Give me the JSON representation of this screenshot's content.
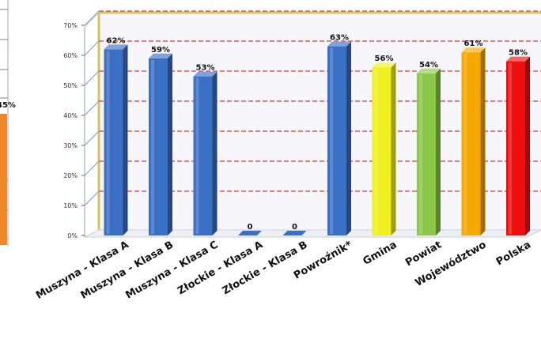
{
  "chart_data": {
    "type": "bar",
    "categories": [
      "Muszyna - Klasa A",
      "Muszyna - Klasa B",
      "Muszyna - Klasa C",
      "Złockie - Klasa A",
      "Złockie - Klasa B",
      "Powroźnik*",
      "Gmina",
      "Powiat",
      "Województwo",
      "Polska"
    ],
    "values": [
      62,
      59,
      53,
      0,
      0,
      63,
      56,
      54,
      61,
      58
    ],
    "value_labels": [
      "62%",
      "59%",
      "53%",
      "0",
      "0",
      "63%",
      "56%",
      "54%",
      "61%",
      "58%"
    ],
    "colors": [
      "#3b6fc4",
      "#3b6fc4",
      "#3b6fc4",
      "#3b6fc4",
      "#3b6fc4",
      "#3b6fc4",
      "#f0f020",
      "#8cc84a",
      "#f5a800",
      "#ee1010"
    ],
    "yticks": [
      "0%",
      "10%",
      "20%",
      "30%",
      "40%",
      "50%",
      "60%",
      "70%"
    ],
    "ylim": [
      0,
      70
    ],
    "grid": true,
    "title": "",
    "xlabel": "",
    "ylabel": ""
  },
  "partial_chart": {
    "value_label": "45%",
    "color": "#f0892a"
  }
}
